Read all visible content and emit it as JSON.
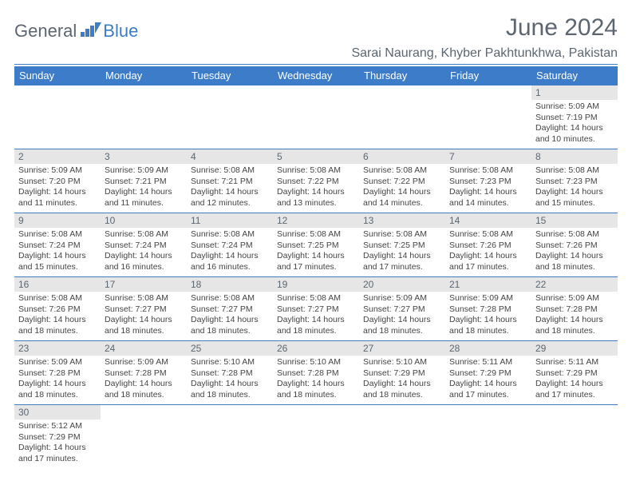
{
  "logo": {
    "word1": "General",
    "word2": "Blue",
    "chart_color": "#3d7cc9"
  },
  "title": "June 2024",
  "location": "Sarai Naurang, Khyber Pakhtunkhwa, Pakistan",
  "weekdays": [
    "Sunday",
    "Monday",
    "Tuesday",
    "Wednesday",
    "Thursday",
    "Friday",
    "Saturday"
  ],
  "colors": {
    "header_bg": "#3d7cc9",
    "header_fg": "#ffffff",
    "rule": "#3d7cc9",
    "daybar_bg": "#e6e6e6",
    "text": "#5c6670"
  },
  "weeks": [
    [
      {
        "n": "",
        "sr": "",
        "ss": "",
        "dl": ""
      },
      {
        "n": "",
        "sr": "",
        "ss": "",
        "dl": ""
      },
      {
        "n": "",
        "sr": "",
        "ss": "",
        "dl": ""
      },
      {
        "n": "",
        "sr": "",
        "ss": "",
        "dl": ""
      },
      {
        "n": "",
        "sr": "",
        "ss": "",
        "dl": ""
      },
      {
        "n": "",
        "sr": "",
        "ss": "",
        "dl": ""
      },
      {
        "n": "1",
        "sr": "Sunrise: 5:09 AM",
        "ss": "Sunset: 7:19 PM",
        "dl": "Daylight: 14 hours and 10 minutes."
      }
    ],
    [
      {
        "n": "2",
        "sr": "Sunrise: 5:09 AM",
        "ss": "Sunset: 7:20 PM",
        "dl": "Daylight: 14 hours and 11 minutes."
      },
      {
        "n": "3",
        "sr": "Sunrise: 5:09 AM",
        "ss": "Sunset: 7:21 PM",
        "dl": "Daylight: 14 hours and 11 minutes."
      },
      {
        "n": "4",
        "sr": "Sunrise: 5:08 AM",
        "ss": "Sunset: 7:21 PM",
        "dl": "Daylight: 14 hours and 12 minutes."
      },
      {
        "n": "5",
        "sr": "Sunrise: 5:08 AM",
        "ss": "Sunset: 7:22 PM",
        "dl": "Daylight: 14 hours and 13 minutes."
      },
      {
        "n": "6",
        "sr": "Sunrise: 5:08 AM",
        "ss": "Sunset: 7:22 PM",
        "dl": "Daylight: 14 hours and 14 minutes."
      },
      {
        "n": "7",
        "sr": "Sunrise: 5:08 AM",
        "ss": "Sunset: 7:23 PM",
        "dl": "Daylight: 14 hours and 14 minutes."
      },
      {
        "n": "8",
        "sr": "Sunrise: 5:08 AM",
        "ss": "Sunset: 7:23 PM",
        "dl": "Daylight: 14 hours and 15 minutes."
      }
    ],
    [
      {
        "n": "9",
        "sr": "Sunrise: 5:08 AM",
        "ss": "Sunset: 7:24 PM",
        "dl": "Daylight: 14 hours and 15 minutes."
      },
      {
        "n": "10",
        "sr": "Sunrise: 5:08 AM",
        "ss": "Sunset: 7:24 PM",
        "dl": "Daylight: 14 hours and 16 minutes."
      },
      {
        "n": "11",
        "sr": "Sunrise: 5:08 AM",
        "ss": "Sunset: 7:24 PM",
        "dl": "Daylight: 14 hours and 16 minutes."
      },
      {
        "n": "12",
        "sr": "Sunrise: 5:08 AM",
        "ss": "Sunset: 7:25 PM",
        "dl": "Daylight: 14 hours and 17 minutes."
      },
      {
        "n": "13",
        "sr": "Sunrise: 5:08 AM",
        "ss": "Sunset: 7:25 PM",
        "dl": "Daylight: 14 hours and 17 minutes."
      },
      {
        "n": "14",
        "sr": "Sunrise: 5:08 AM",
        "ss": "Sunset: 7:26 PM",
        "dl": "Daylight: 14 hours and 17 minutes."
      },
      {
        "n": "15",
        "sr": "Sunrise: 5:08 AM",
        "ss": "Sunset: 7:26 PM",
        "dl": "Daylight: 14 hours and 18 minutes."
      }
    ],
    [
      {
        "n": "16",
        "sr": "Sunrise: 5:08 AM",
        "ss": "Sunset: 7:26 PM",
        "dl": "Daylight: 14 hours and 18 minutes."
      },
      {
        "n": "17",
        "sr": "Sunrise: 5:08 AM",
        "ss": "Sunset: 7:27 PM",
        "dl": "Daylight: 14 hours and 18 minutes."
      },
      {
        "n": "18",
        "sr": "Sunrise: 5:08 AM",
        "ss": "Sunset: 7:27 PM",
        "dl": "Daylight: 14 hours and 18 minutes."
      },
      {
        "n": "19",
        "sr": "Sunrise: 5:08 AM",
        "ss": "Sunset: 7:27 PM",
        "dl": "Daylight: 14 hours and 18 minutes."
      },
      {
        "n": "20",
        "sr": "Sunrise: 5:09 AM",
        "ss": "Sunset: 7:27 PM",
        "dl": "Daylight: 14 hours and 18 minutes."
      },
      {
        "n": "21",
        "sr": "Sunrise: 5:09 AM",
        "ss": "Sunset: 7:28 PM",
        "dl": "Daylight: 14 hours and 18 minutes."
      },
      {
        "n": "22",
        "sr": "Sunrise: 5:09 AM",
        "ss": "Sunset: 7:28 PM",
        "dl": "Daylight: 14 hours and 18 minutes."
      }
    ],
    [
      {
        "n": "23",
        "sr": "Sunrise: 5:09 AM",
        "ss": "Sunset: 7:28 PM",
        "dl": "Daylight: 14 hours and 18 minutes."
      },
      {
        "n": "24",
        "sr": "Sunrise: 5:09 AM",
        "ss": "Sunset: 7:28 PM",
        "dl": "Daylight: 14 hours and 18 minutes."
      },
      {
        "n": "25",
        "sr": "Sunrise: 5:10 AM",
        "ss": "Sunset: 7:28 PM",
        "dl": "Daylight: 14 hours and 18 minutes."
      },
      {
        "n": "26",
        "sr": "Sunrise: 5:10 AM",
        "ss": "Sunset: 7:28 PM",
        "dl": "Daylight: 14 hours and 18 minutes."
      },
      {
        "n": "27",
        "sr": "Sunrise: 5:10 AM",
        "ss": "Sunset: 7:29 PM",
        "dl": "Daylight: 14 hours and 18 minutes."
      },
      {
        "n": "28",
        "sr": "Sunrise: 5:11 AM",
        "ss": "Sunset: 7:29 PM",
        "dl": "Daylight: 14 hours and 17 minutes."
      },
      {
        "n": "29",
        "sr": "Sunrise: 5:11 AM",
        "ss": "Sunset: 7:29 PM",
        "dl": "Daylight: 14 hours and 17 minutes."
      }
    ],
    [
      {
        "n": "30",
        "sr": "Sunrise: 5:12 AM",
        "ss": "Sunset: 7:29 PM",
        "dl": "Daylight: 14 hours and 17 minutes."
      },
      {
        "n": "",
        "sr": "",
        "ss": "",
        "dl": ""
      },
      {
        "n": "",
        "sr": "",
        "ss": "",
        "dl": ""
      },
      {
        "n": "",
        "sr": "",
        "ss": "",
        "dl": ""
      },
      {
        "n": "",
        "sr": "",
        "ss": "",
        "dl": ""
      },
      {
        "n": "",
        "sr": "",
        "ss": "",
        "dl": ""
      },
      {
        "n": "",
        "sr": "",
        "ss": "",
        "dl": ""
      }
    ]
  ]
}
